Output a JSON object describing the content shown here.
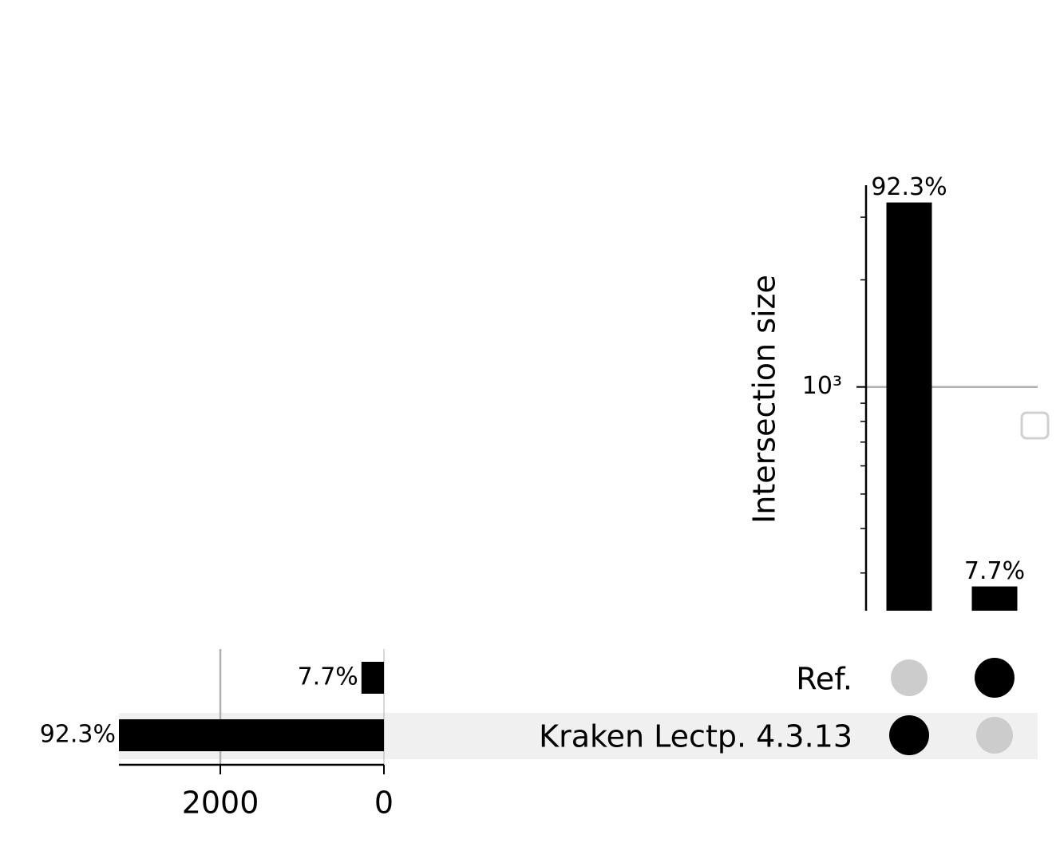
{
  "chart_data": {
    "type": "upset",
    "ylabel": "Intersection size",
    "log_y": true,
    "ylim": [
      235,
      3690
    ],
    "yticks": [
      {
        "value": 1000,
        "label": "10³"
      }
    ],
    "yminorticks": [
      300,
      400,
      500,
      600,
      700,
      800,
      900,
      2000,
      3000
    ],
    "grid": true,
    "bar_color": "#000000",
    "dot_active_color": "#000000",
    "dot_inactive_color": "#cccccc",
    "sets": [
      "Ref.",
      "Kraken Lectp. 4.3.13"
    ],
    "set_sizes": {
      "values": [
        275,
        3300
      ],
      "value_labels": [
        "7.7%",
        "92.3%"
      ]
    },
    "xlim": [
      3240,
      0
    ],
    "xticks": [
      2000,
      0
    ],
    "intersections": {
      "values": [
        3300,
        275
      ],
      "value_labels": [
        "92.3%",
        "7.7%"
      ],
      "members": [
        [
          1
        ],
        [
          0
        ]
      ]
    }
  }
}
